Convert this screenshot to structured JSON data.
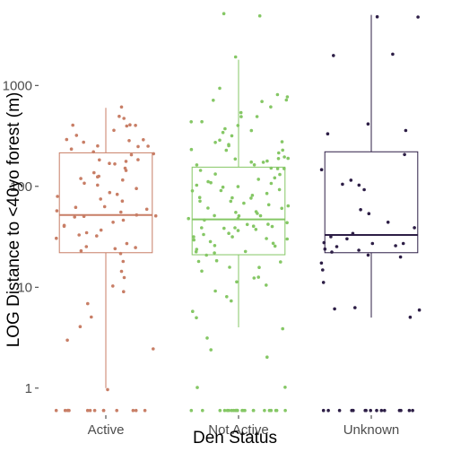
{
  "chart_data": {
    "type": "boxplot",
    "xlabel": "Den Status",
    "ylabel": "LOG Distance to <40yo forest (m)",
    "y_scale": "log10",
    "ylim": [
      0.55,
      5500
    ],
    "y_ticks": [
      {
        "value": 1,
        "label": "1"
      },
      {
        "value": 10,
        "label": "10"
      },
      {
        "value": 100,
        "label": "100"
      },
      {
        "value": 1000,
        "label": "1000"
      }
    ],
    "grid": false,
    "legend": "none",
    "categories": [
      "Active",
      "Not Active",
      "Unknown"
    ],
    "series": [
      {
        "category": "Active",
        "color": "#c87e66",
        "box": {
          "min": 1.0,
          "q1": 22,
          "median": 52,
          "q3": 215,
          "max": 600
        },
        "points": [
          600,
          520,
          480,
          420,
          410,
          400,
          390,
          350,
          330,
          300,
          290,
          280,
          270,
          260,
          250,
          240,
          230,
          220,
          210,
          200,
          190,
          180,
          175,
          170,
          160,
          150,
          140,
          135,
          130,
          120,
          115,
          110,
          105,
          100,
          95,
          90,
          85,
          80,
          75,
          70,
          66,
          62,
          60,
          58,
          55,
          53,
          52,
          51,
          50,
          48,
          45,
          42,
          40,
          38,
          36,
          34,
          32,
          30,
          28,
          26,
          25,
          24,
          23,
          22,
          18,
          15,
          12,
          10,
          9,
          7,
          5,
          4,
          3,
          2.5,
          1.0,
          0.6,
          0.6,
          0.6,
          0.6,
          0.6,
          0.6,
          0.6,
          0.6,
          0.6,
          0.6,
          0.6,
          0.6,
          0.6,
          0.6,
          0.6
        ]
      },
      {
        "category": "Not Active",
        "color": "#85c765",
        "box": {
          "min": 4,
          "q1": 21,
          "median": 47,
          "q3": 155,
          "max": 1800
        },
        "points": [
          5000,
          5000,
          2000,
          900,
          800,
          750,
          720,
          700,
          680,
          600,
          550,
          500,
          480,
          450,
          420,
          400,
          380,
          360,
          340,
          320,
          300,
          280,
          270,
          260,
          250,
          240,
          230,
          220,
          210,
          200,
          195,
          190,
          185,
          180,
          175,
          170,
          165,
          160,
          155,
          150,
          145,
          140,
          135,
          130,
          125,
          120,
          115,
          110,
          105,
          100,
          98,
          95,
          92,
          90,
          88,
          85,
          82,
          80,
          78,
          75,
          72,
          70,
          68,
          66,
          64,
          62,
          60,
          58,
          56,
          54,
          52,
          50,
          49,
          48,
          47,
          46,
          45,
          44,
          43,
          42,
          41,
          40,
          39,
          38,
          37,
          36,
          35,
          34,
          33,
          32,
          31,
          30,
          29,
          28,
          27,
          26,
          25,
          24,
          23,
          22,
          21,
          20,
          19,
          18,
          17,
          16,
          15,
          14,
          13,
          12,
          11,
          10,
          9,
          8,
          7,
          6,
          5,
          4,
          3,
          2.5,
          2,
          1.0,
          1.0,
          0.6,
          0.6,
          0.6,
          0.6,
          0.6,
          0.6,
          0.6,
          0.6,
          0.6,
          0.6,
          0.6,
          0.6,
          0.6,
          0.6,
          0.6,
          0.6,
          0.6,
          0.6,
          0.6,
          0.6,
          0.6,
          0.6,
          0.6,
          0.6,
          0.6,
          0.6
        ]
      },
      {
        "category": "Unknown",
        "color": "#2d1e46",
        "box": {
          "min": 5,
          "q1": 22,
          "median": 33,
          "q3": 220,
          "max": 5000
        },
        "points": [
          5000,
          5000,
          2000,
          2000,
          400,
          350,
          320,
          200,
          150,
          120,
          110,
          100,
          90,
          60,
          55,
          45,
          40,
          35,
          32,
          30,
          29,
          28,
          27,
          26,
          25,
          24,
          23,
          22,
          21,
          20,
          18,
          15,
          11,
          6,
          6,
          6,
          5,
          0.6,
          0.6,
          0.6,
          0.6,
          0.6,
          0.6,
          0.6,
          0.6,
          0.6,
          0.6,
          0.6,
          0.6,
          0.6,
          0.6,
          0.6,
          0.6
        ]
      }
    ]
  }
}
